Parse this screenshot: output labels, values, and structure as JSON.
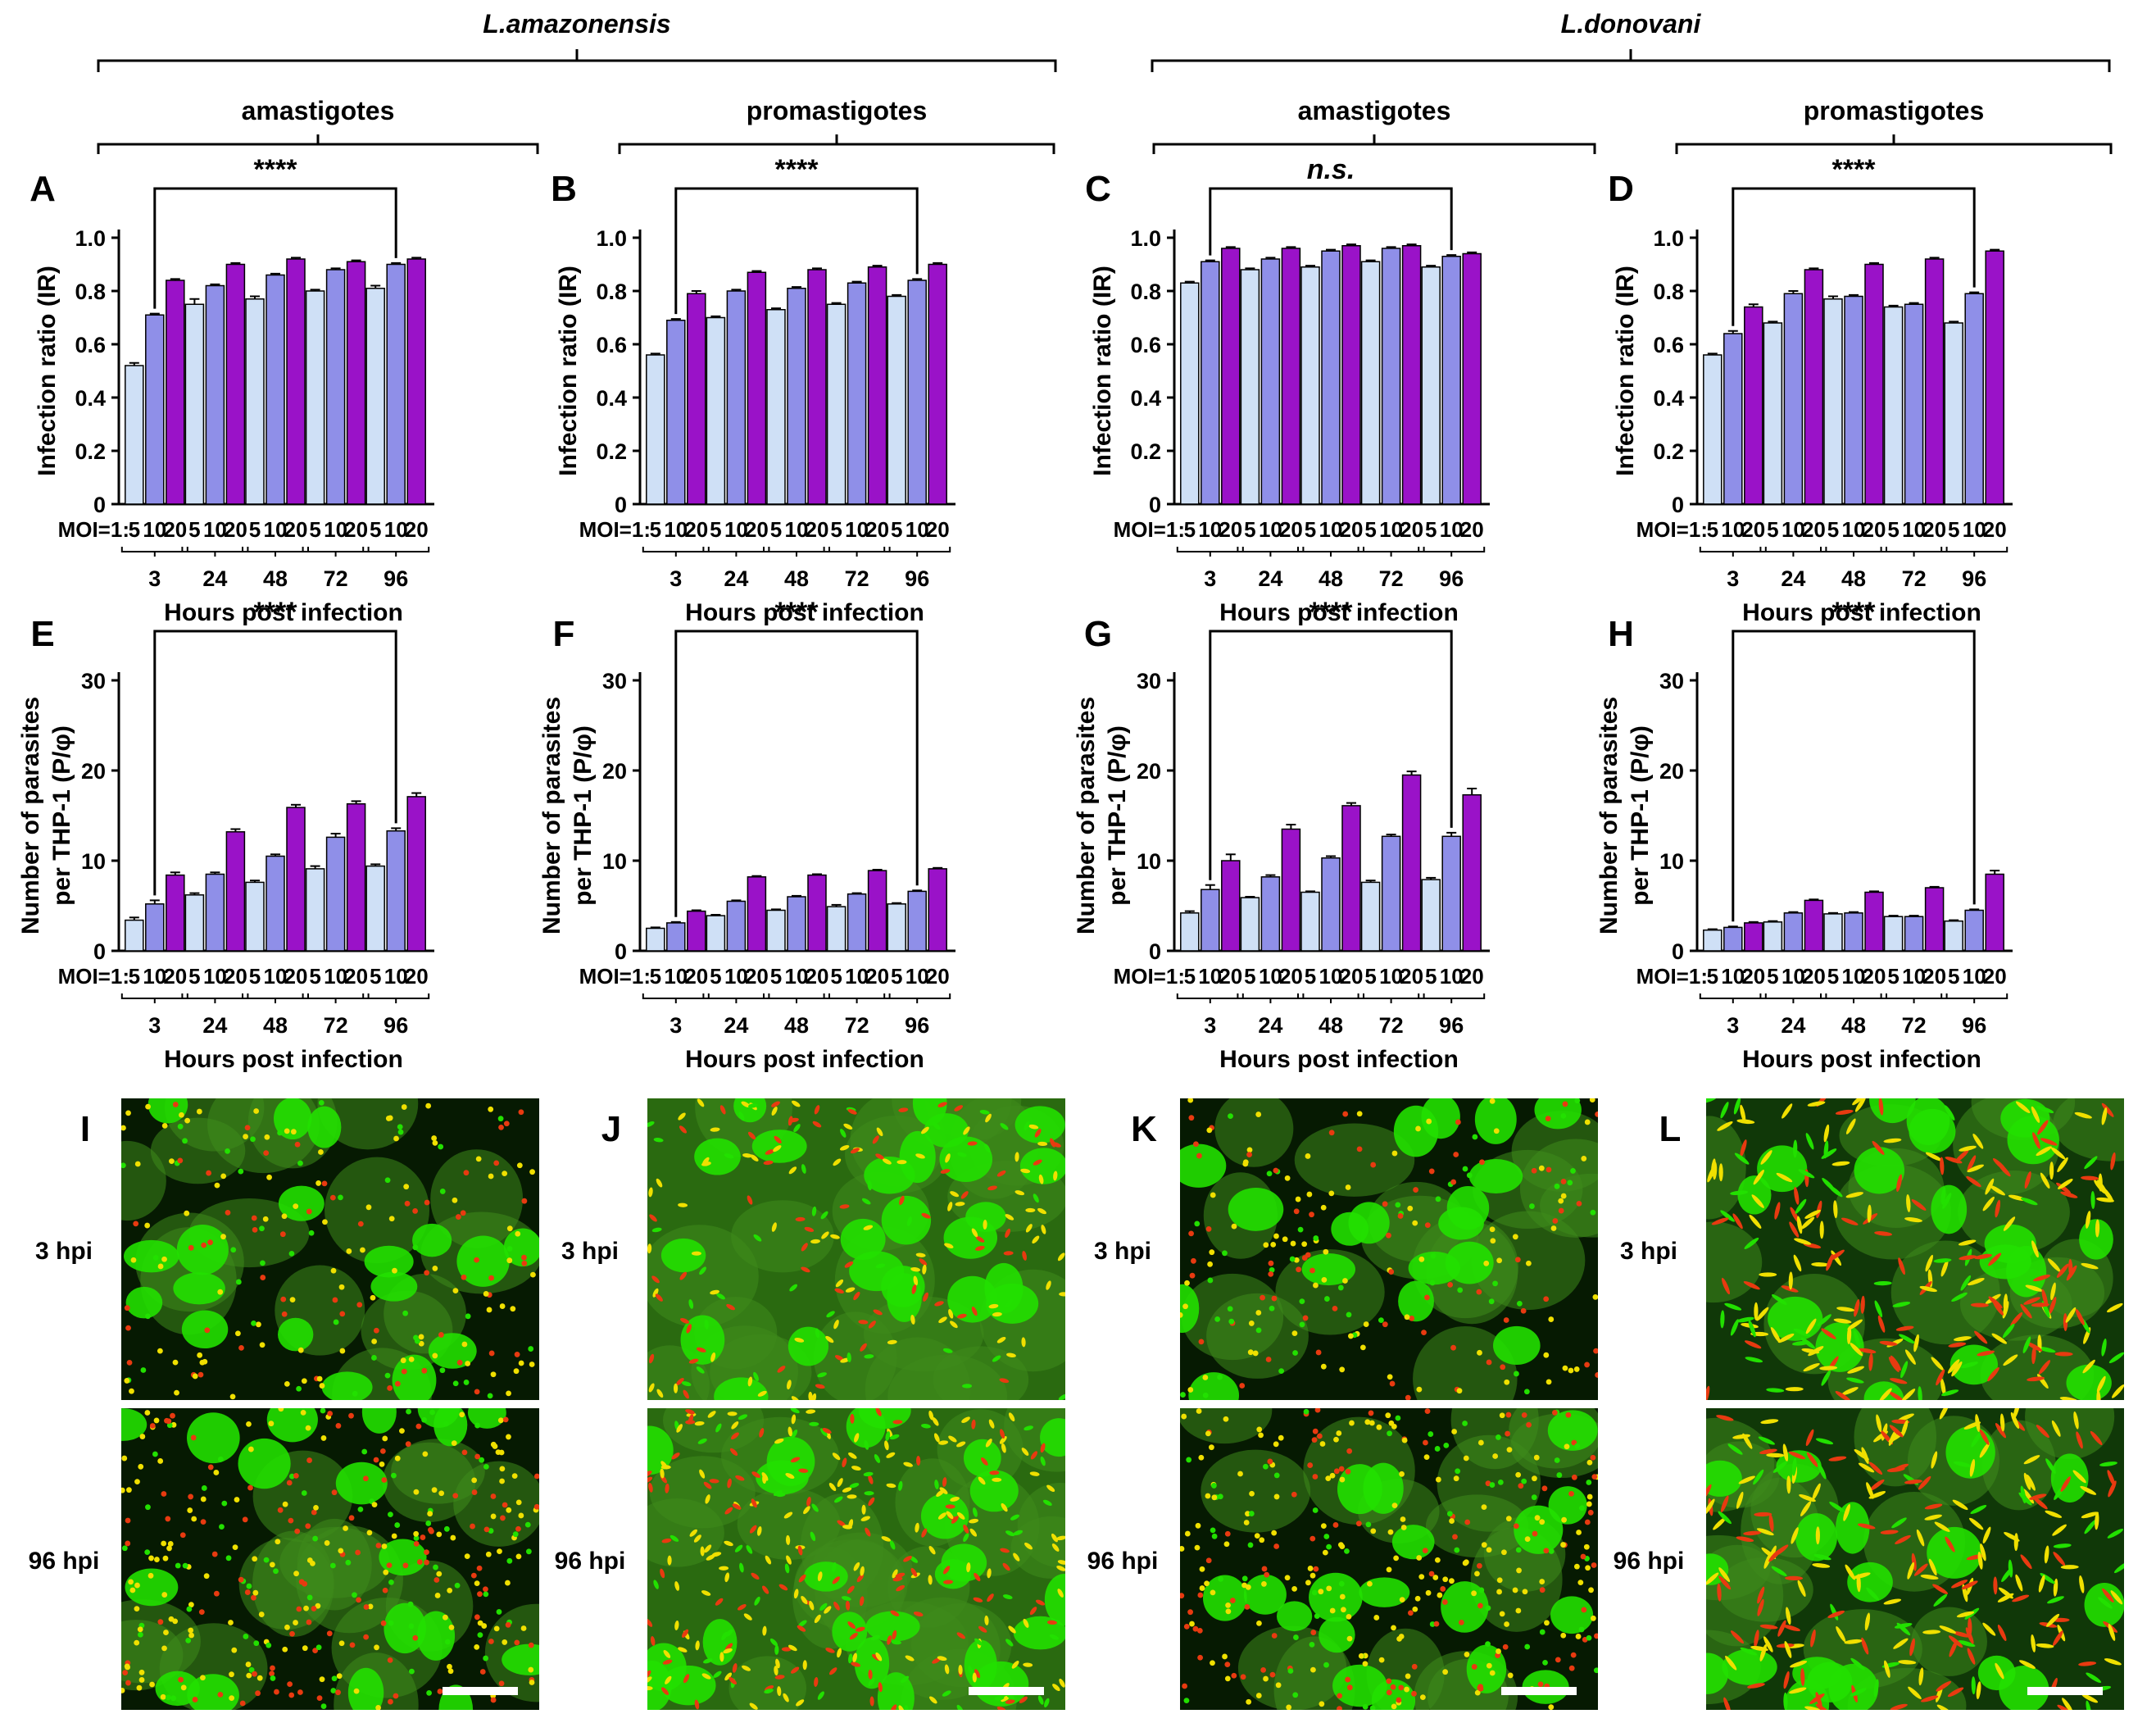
{
  "brackets": {
    "species": [
      {
        "label": "L.amazonensis"
      },
      {
        "label": "L.donovani"
      }
    ],
    "stages": [
      {
        "label": "amastigotes"
      },
      {
        "label": "promastigotes"
      },
      {
        "label": "amastigotes"
      },
      {
        "label": "promastigotes"
      }
    ]
  },
  "colors": {
    "moi5": "#cfe0f6",
    "moi10": "#8f8fe8",
    "moi20": "#9a12c8",
    "fluor_green": "#22e000",
    "fluor_red": "#e83a10",
    "fluor_yellow": "#f0e000"
  },
  "chart_data": [
    {
      "panel": "A",
      "type": "bar",
      "species": "L.amazonensis",
      "stage": "amastigotes",
      "ylabel": [
        "Infection ratio (IR)"
      ],
      "ylim": [
        0,
        1.0
      ],
      "yticks": [
        "0",
        "0.2",
        "0.4",
        "0.6",
        "0.8",
        "1.0"
      ],
      "ytick_values": [
        0,
        0.2,
        0.4,
        0.6,
        0.8,
        1.0
      ],
      "moi_prefix": "MOI=1:",
      "moi_labels": [
        "5",
        "10",
        "20"
      ],
      "groups": [
        "3",
        "24",
        "48",
        "72",
        "96"
      ],
      "xlabel": "Hours post infection",
      "values": [
        [
          0.52,
          0.71,
          0.84
        ],
        [
          0.75,
          0.82,
          0.9
        ],
        [
          0.77,
          0.86,
          0.92
        ],
        [
          0.8,
          0.88,
          0.91
        ],
        [
          0.81,
          0.9,
          0.92
        ]
      ],
      "errors": [
        [
          0.01,
          0.005,
          0.005
        ],
        [
          0.02,
          0.005,
          0.005
        ],
        [
          0.01,
          0.005,
          0.005
        ],
        [
          0.005,
          0.005,
          0.005
        ],
        [
          0.01,
          0.005,
          0.005
        ]
      ],
      "significance": "****"
    },
    {
      "panel": "B",
      "type": "bar",
      "species": "L.amazonensis",
      "stage": "promastigotes",
      "ylabel": [
        "Infection ratio (IR)"
      ],
      "ylim": [
        0,
        1.0
      ],
      "yticks": [
        "0",
        "0.2",
        "0.4",
        "0.6",
        "0.8",
        "1.0"
      ],
      "ytick_values": [
        0,
        0.2,
        0.4,
        0.6,
        0.8,
        1.0
      ],
      "moi_prefix": "MOI=1:",
      "moi_labels": [
        "5",
        "10",
        "20"
      ],
      "groups": [
        "3",
        "24",
        "48",
        "72",
        "96"
      ],
      "xlabel": "Hours post infection",
      "values": [
        [
          0.56,
          0.69,
          0.79
        ],
        [
          0.7,
          0.8,
          0.87
        ],
        [
          0.73,
          0.81,
          0.88
        ],
        [
          0.75,
          0.83,
          0.89
        ],
        [
          0.78,
          0.84,
          0.9
        ]
      ],
      "errors": [
        [
          0.005,
          0.005,
          0.01
        ],
        [
          0.005,
          0.005,
          0.005
        ],
        [
          0.005,
          0.005,
          0.005
        ],
        [
          0.005,
          0.005,
          0.005
        ],
        [
          0.005,
          0.005,
          0.005
        ]
      ],
      "significance": "****"
    },
    {
      "panel": "C",
      "type": "bar",
      "species": "L.donovani",
      "stage": "amastigotes",
      "ylabel": [
        "Infection ratio (IR)"
      ],
      "ylim": [
        0,
        1.0
      ],
      "yticks": [
        "0",
        "0.2",
        "0.4",
        "0.6",
        "0.8",
        "1.0"
      ],
      "ytick_values": [
        0,
        0.2,
        0.4,
        0.6,
        0.8,
        1.0
      ],
      "moi_prefix": "MOI=1:",
      "moi_labels": [
        "5",
        "10",
        "20"
      ],
      "groups": [
        "3",
        "24",
        "48",
        "72",
        "96"
      ],
      "xlabel": "Hours post infection",
      "values": [
        [
          0.83,
          0.91,
          0.96
        ],
        [
          0.88,
          0.92,
          0.96
        ],
        [
          0.89,
          0.95,
          0.97
        ],
        [
          0.91,
          0.96,
          0.97
        ],
        [
          0.89,
          0.93,
          0.94
        ]
      ],
      "errors": [
        [
          0.005,
          0.005,
          0.005
        ],
        [
          0.005,
          0.005,
          0.005
        ],
        [
          0.005,
          0.005,
          0.005
        ],
        [
          0.005,
          0.005,
          0.005
        ],
        [
          0.005,
          0.005,
          0.005
        ]
      ],
      "significance": "n.s."
    },
    {
      "panel": "D",
      "type": "bar",
      "species": "L.donovani",
      "stage": "promastigotes",
      "ylabel": [
        "Infection ratio (IR)"
      ],
      "ylim": [
        0,
        1.0
      ],
      "yticks": [
        "0",
        "0.2",
        "0.4",
        "0.6",
        "0.8",
        "1.0"
      ],
      "ytick_values": [
        0,
        0.2,
        0.4,
        0.6,
        0.8,
        1.0
      ],
      "moi_prefix": "MOI=1:",
      "moi_labels": [
        "5",
        "10",
        "20"
      ],
      "groups": [
        "3",
        "24",
        "48",
        "72",
        "96"
      ],
      "xlabel": "Hours post infection",
      "values": [
        [
          0.56,
          0.64,
          0.74
        ],
        [
          0.68,
          0.79,
          0.88
        ],
        [
          0.77,
          0.78,
          0.9
        ],
        [
          0.74,
          0.75,
          0.92
        ],
        [
          0.68,
          0.79,
          0.95
        ]
      ],
      "errors": [
        [
          0.005,
          0.01,
          0.01
        ],
        [
          0.005,
          0.01,
          0.005
        ],
        [
          0.01,
          0.005,
          0.005
        ],
        [
          0.005,
          0.005,
          0.005
        ],
        [
          0.005,
          0.005,
          0.005
        ]
      ],
      "significance": "****"
    },
    {
      "panel": "E",
      "type": "bar",
      "species": "L.amazonensis",
      "stage": "amastigotes",
      "ylabel": [
        "Number of parasites",
        "per THP-1 (P/φ)"
      ],
      "ylim": [
        0,
        30
      ],
      "yticks": [
        "0",
        "10",
        "20",
        "30"
      ],
      "ytick_values": [
        0,
        10,
        20,
        30
      ],
      "moi_prefix": "MOI=1:",
      "moi_labels": [
        "5",
        "10",
        "20"
      ],
      "groups": [
        "3",
        "24",
        "48",
        "72",
        "96"
      ],
      "xlabel": "Hours post infection",
      "values": [
        [
          3.4,
          5.2,
          8.4
        ],
        [
          6.2,
          8.5,
          13.2
        ],
        [
          7.6,
          10.5,
          15.9
        ],
        [
          9.1,
          12.6,
          16.3
        ],
        [
          9.4,
          13.3,
          17.1
        ]
      ],
      "errors": [
        [
          0.3,
          0.4,
          0.3
        ],
        [
          0.2,
          0.2,
          0.3
        ],
        [
          0.2,
          0.2,
          0.3
        ],
        [
          0.3,
          0.4,
          0.3
        ],
        [
          0.2,
          0.3,
          0.4
        ]
      ],
      "significance": "****"
    },
    {
      "panel": "F",
      "type": "bar",
      "species": "L.amazonensis",
      "stage": "promastigotes",
      "ylabel": [
        "Number of parasites",
        "per THP-1 (P/φ)"
      ],
      "ylim": [
        0,
        30
      ],
      "yticks": [
        "0",
        "10",
        "20",
        "30"
      ],
      "ytick_values": [
        0,
        10,
        20,
        30
      ],
      "moi_prefix": "MOI=1:",
      "moi_labels": [
        "5",
        "10",
        "20"
      ],
      "groups": [
        "3",
        "24",
        "48",
        "72",
        "96"
      ],
      "xlabel": "Hours post infection",
      "values": [
        [
          2.5,
          3.1,
          4.4
        ],
        [
          3.9,
          5.5,
          8.2
        ],
        [
          4.5,
          6.0,
          8.4
        ],
        [
          4.9,
          6.3,
          8.9
        ],
        [
          5.2,
          6.6,
          9.1
        ]
      ],
      "errors": [
        [
          0.1,
          0.1,
          0.1
        ],
        [
          0.1,
          0.1,
          0.1
        ],
        [
          0.1,
          0.1,
          0.1
        ],
        [
          0.2,
          0.1,
          0.1
        ],
        [
          0.1,
          0.1,
          0.1
        ]
      ],
      "significance": "****"
    },
    {
      "panel": "G",
      "type": "bar",
      "species": "L.donovani",
      "stage": "amastigotes",
      "ylabel": [
        "Number of parasites",
        "per THP-1 (P/φ)"
      ],
      "ylim": [
        0,
        30
      ],
      "yticks": [
        "0",
        "10",
        "20",
        "30"
      ],
      "ytick_values": [
        0,
        10,
        20,
        30
      ],
      "moi_prefix": "MOI=1:",
      "moi_labels": [
        "5",
        "10",
        "20"
      ],
      "groups": [
        "3",
        "24",
        "48",
        "72",
        "96"
      ],
      "xlabel": "Hours post infection",
      "values": [
        [
          4.2,
          6.8,
          10.0
        ],
        [
          5.9,
          8.2,
          13.5
        ],
        [
          6.5,
          10.3,
          16.1
        ],
        [
          7.6,
          12.7,
          19.5
        ],
        [
          7.9,
          12.7,
          17.3
        ]
      ],
      "errors": [
        [
          0.2,
          0.5,
          0.7
        ],
        [
          0.1,
          0.2,
          0.5
        ],
        [
          0.1,
          0.2,
          0.3
        ],
        [
          0.2,
          0.2,
          0.4
        ],
        [
          0.2,
          0.4,
          0.7
        ]
      ],
      "significance": "****"
    },
    {
      "panel": "H",
      "type": "bar",
      "species": "L.donovani",
      "stage": "promastigotes",
      "ylabel": [
        "Number of parasites",
        "per THP-1 (P/φ)"
      ],
      "ylim": [
        0,
        30
      ],
      "yticks": [
        "0",
        "10",
        "20",
        "30"
      ],
      "ytick_values": [
        0,
        10,
        20,
        30
      ],
      "moi_prefix": "MOI=1:",
      "moi_labels": [
        "5",
        "10",
        "20"
      ],
      "groups": [
        "3",
        "24",
        "48",
        "72",
        "96"
      ],
      "xlabel": "Hours post infection",
      "values": [
        [
          2.3,
          2.6,
          3.1
        ],
        [
          3.2,
          4.2,
          5.6
        ],
        [
          4.1,
          4.2,
          6.5
        ],
        [
          3.8,
          3.8,
          7.0
        ],
        [
          3.3,
          4.5,
          8.5
        ]
      ],
      "errors": [
        [
          0.1,
          0.1,
          0.1
        ],
        [
          0.1,
          0.1,
          0.1
        ],
        [
          0.1,
          0.1,
          0.1
        ],
        [
          0.1,
          0.1,
          0.1
        ],
        [
          0.1,
          0.1,
          0.4
        ]
      ],
      "significance": "****"
    }
  ],
  "micrographs": [
    {
      "panel": "I",
      "rows": [
        {
          "label": "3 hpi"
        },
        {
          "label": "96 hpi"
        }
      ]
    },
    {
      "panel": "J",
      "rows": [
        {
          "label": "3 hpi"
        },
        {
          "label": "96 hpi"
        }
      ]
    },
    {
      "panel": "K",
      "rows": [
        {
          "label": "3 hpi"
        },
        {
          "label": "96 hpi"
        }
      ]
    },
    {
      "panel": "L",
      "rows": [
        {
          "label": "3 hpi"
        },
        {
          "label": "96 hpi"
        }
      ]
    }
  ]
}
